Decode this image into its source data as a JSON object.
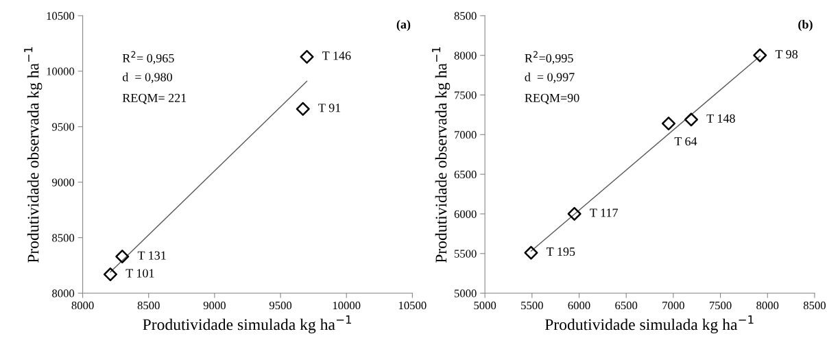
{
  "chart_data": [
    {
      "type": "scatter",
      "title": "(a)",
      "xlabel": "Produtividade simulada kg ha$^{−1}$",
      "ylabel": "Produtividade observada kg ha$^{−1}$",
      "xlim": [
        8000,
        10500
      ],
      "ylim": [
        8000,
        10500
      ],
      "xticks": [
        8000,
        8500,
        9000,
        9500,
        10000,
        10500
      ],
      "yticks": [
        8000,
        8500,
        9000,
        9500,
        10000,
        10500
      ],
      "grid": false,
      "series": [
        {
          "color": "#000000",
          "marker": "diamond",
          "x": [
            9700,
            9670,
            8300,
            8210
          ],
          "values": [
            10130,
            9660,
            8330,
            8170
          ]
        },
        {
          "type": "line",
          "marker": "none",
          "color": "#595959",
          "x": [
            8210,
            9700
          ],
          "values": [
            8190,
            9910
          ]
        }
      ],
      "annotations": [
        "R$^{2}$= 0,965",
        "d  = 0,980",
        "REQM= 221",
        {
          "text": "T 146",
          "x": 9700,
          "y": 10130
        },
        {
          "text": "T 91",
          "x": 9670,
          "y": 9660
        },
        {
          "text": "T 131",
          "x": 8300,
          "y": 8330
        },
        {
          "text": "T 101",
          "x": 8210,
          "y": 8170
        }
      ]
    },
    {
      "type": "scatter",
      "title": "(b)",
      "xlabel": "Produtividade simulada kg ha$^{−1}$",
      "ylabel": "Produtividade observada kg ha$^{−1}$",
      "xlim": [
        5000,
        8500
      ],
      "ylim": [
        5000,
        8500
      ],
      "xticks": [
        5000,
        5500,
        6000,
        6500,
        7000,
        7500,
        8000,
        8500
      ],
      "yticks": [
        5000,
        5500,
        6000,
        6500,
        7000,
        7500,
        8000,
        8500
      ],
      "grid": false,
      "series": [
        {
          "color": "#000000",
          "marker": "diamond",
          "x": [
            7920,
            7190,
            6950,
            5950,
            5490
          ],
          "values": [
            8000,
            7190,
            7140,
            6000,
            5510
          ]
        },
        {
          "type": "line",
          "marker": "none",
          "color": "#595959",
          "x": [
            5490,
            7920
          ],
          "values": [
            5530,
            7990
          ]
        }
      ],
      "annotations": [
        "R$^{2}$=0,995",
        "d  = 0,997",
        "REQM=90",
        {
          "text": "T 98",
          "x": 7920,
          "y": 8000
        },
        {
          "text": "T 148",
          "x": 7190,
          "y": 7190
        },
        {
          "text": "T 64",
          "x": 6950,
          "y": 7140
        },
        {
          "text": "T 117",
          "x": 5950,
          "y": 6000
        },
        {
          "text": "T 195",
          "x": 5490,
          "y": 5510
        }
      ]
    }
  ]
}
